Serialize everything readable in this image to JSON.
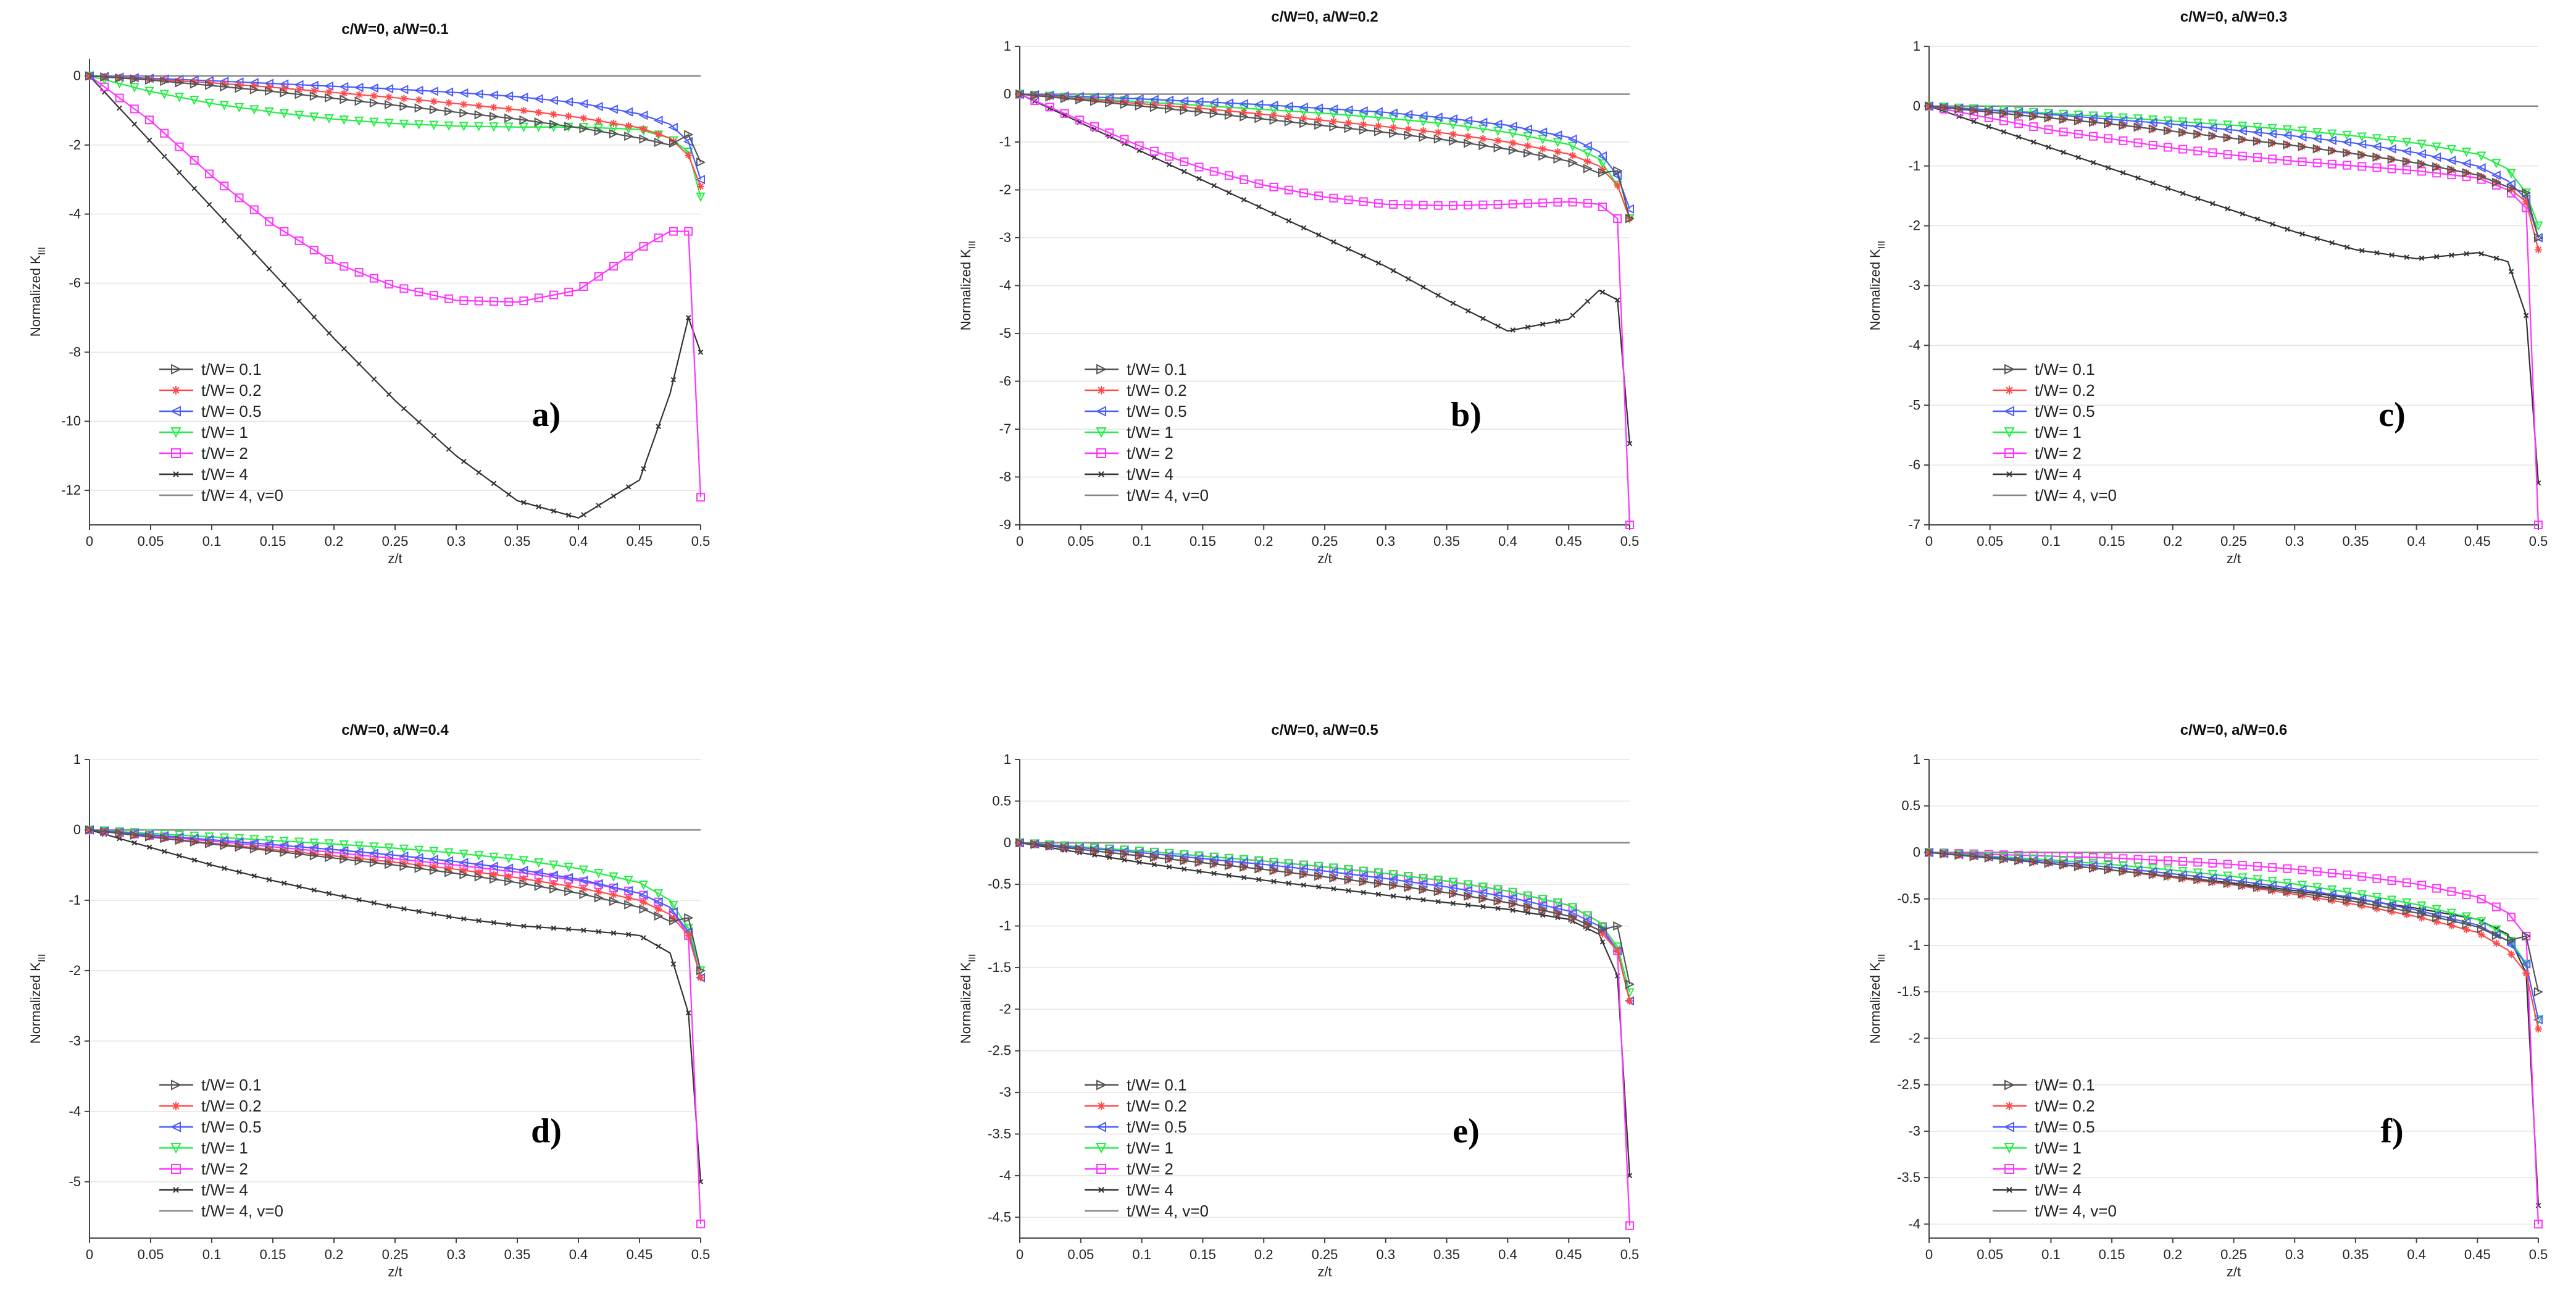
{
  "figure": {
    "xlabel": "z/t",
    "ylabel_prefix": "Normalized K",
    "ylabel_sub": "III",
    "legend": [
      {
        "label": "t/W= 0.1",
        "color": "#555555",
        "marker": "tri-right"
      },
      {
        "label": "t/W= 0.2",
        "color": "#ff4a4a",
        "marker": "star"
      },
      {
        "label": "t/W= 0.5",
        "color": "#4a5cff",
        "marker": "tri-left"
      },
      {
        "label": "t/W= 1",
        "color": "#22ee44",
        "marker": "tri-down"
      },
      {
        "label": "t/W= 2",
        "color": "#ff33ff",
        "marker": "square"
      },
      {
        "label": "t/W= 4",
        "color": "#333333",
        "marker": "x"
      },
      {
        "label": "t/W= 4, v=0",
        "color": "#888888",
        "marker": "none"
      }
    ]
  },
  "chart_data": [
    {
      "type": "line",
      "panel_label": "a)",
      "title": "c/W=0, a/W=0.1",
      "xlabel": "z/t",
      "ylabel": "Normalized K_III",
      "xlim": [
        0,
        0.5
      ],
      "ylim": [
        -13,
        0.5
      ],
      "xticks": [
        0,
        0.05,
        0.1,
        0.15,
        0.2,
        0.25,
        0.3,
        0.35,
        0.4,
        0.45,
        0.5
      ],
      "yticks": [
        0,
        -2,
        -4,
        -6,
        -8,
        -10,
        -12
      ],
      "x": [
        0,
        0.05,
        0.1,
        0.15,
        0.2,
        0.25,
        0.3,
        0.35,
        0.4,
        0.45,
        0.475,
        0.49,
        0.5
      ],
      "series": [
        {
          "name": "t/W= 0.1",
          "values": [
            0,
            -0.12,
            -0.28,
            -0.45,
            -0.65,
            -0.85,
            -1.05,
            -1.25,
            -1.5,
            -1.8,
            -2.0,
            -1.7,
            -2.5
          ]
        },
        {
          "name": "t/W= 0.2",
          "values": [
            0,
            -0.1,
            -0.2,
            -0.33,
            -0.48,
            -0.63,
            -0.8,
            -0.98,
            -1.2,
            -1.5,
            -1.8,
            -2.3,
            -3.2
          ]
        },
        {
          "name": "t/W= 0.5",
          "values": [
            0,
            -0.07,
            -0.14,
            -0.22,
            -0.3,
            -0.38,
            -0.48,
            -0.6,
            -0.78,
            -1.1,
            -1.4,
            -1.9,
            -3.0
          ]
        },
        {
          "name": "t/W= 1",
          "values": [
            0,
            -0.45,
            -0.8,
            -1.05,
            -1.25,
            -1.38,
            -1.45,
            -1.48,
            -1.48,
            -1.55,
            -1.8,
            -2.2,
            -3.5
          ]
        },
        {
          "name": "t/W= 2",
          "values": [
            0,
            -1.3,
            -2.9,
            -4.3,
            -5.4,
            -6.1,
            -6.5,
            -6.55,
            -6.2,
            -5.0,
            -4.5,
            -4.5,
            -12.2
          ]
        },
        {
          "name": "t/W= 4",
          "values": [
            0,
            -1.9,
            -3.8,
            -5.7,
            -7.6,
            -9.4,
            -11.0,
            -12.3,
            -12.8,
            -11.7,
            -9.2,
            -7.0,
            -8.0
          ]
        },
        {
          "name": "t/W= 4, v=0",
          "values": [
            0,
            0,
            0,
            0,
            0,
            0,
            0,
            0,
            0,
            0,
            0,
            0,
            0
          ]
        }
      ]
    },
    {
      "type": "line",
      "panel_label": "b)",
      "title": "c/W=0, a/W=0.2",
      "xlabel": "z/t",
      "ylabel": "Normalized K_III",
      "xlim": [
        0,
        0.5
      ],
      "ylim": [
        -9,
        1
      ],
      "xticks": [
        0,
        0.05,
        0.1,
        0.15,
        0.2,
        0.25,
        0.3,
        0.35,
        0.4,
        0.45,
        0.5
      ],
      "yticks": [
        1,
        0,
        -1,
        -2,
        -3,
        -4,
        -5,
        -6,
        -7,
        -8,
        -9
      ],
      "x": [
        0,
        0.05,
        0.1,
        0.15,
        0.2,
        0.25,
        0.3,
        0.35,
        0.4,
        0.45,
        0.475,
        0.49,
        0.5
      ],
      "series": [
        {
          "name": "t/W= 0.1",
          "values": [
            0,
            -0.12,
            -0.25,
            -0.38,
            -0.52,
            -0.66,
            -0.8,
            -0.96,
            -1.15,
            -1.4,
            -1.65,
            -1.6,
            -2.6
          ]
        },
        {
          "name": "t/W= 0.2",
          "values": [
            0,
            -0.1,
            -0.2,
            -0.3,
            -0.42,
            -0.55,
            -0.68,
            -0.82,
            -1.0,
            -1.25,
            -1.5,
            -1.9,
            -2.6
          ]
        },
        {
          "name": "t/W= 0.5",
          "values": [
            0,
            -0.05,
            -0.1,
            -0.16,
            -0.22,
            -0.3,
            -0.38,
            -0.5,
            -0.65,
            -0.9,
            -1.2,
            -1.7,
            -2.4
          ]
        },
        {
          "name": "t/W= 1",
          "values": [
            0,
            -0.08,
            -0.16,
            -0.24,
            -0.32,
            -0.4,
            -0.5,
            -0.62,
            -0.8,
            -1.05,
            -1.35,
            -1.9,
            -2.6
          ]
        },
        {
          "name": "t/W= 2",
          "values": [
            0,
            -0.55,
            -1.1,
            -1.55,
            -1.9,
            -2.15,
            -2.3,
            -2.33,
            -2.3,
            -2.25,
            -2.3,
            -2.6,
            -9.0
          ]
        },
        {
          "name": "t/W= 4",
          "values": [
            0,
            -0.6,
            -1.2,
            -1.8,
            -2.4,
            -3.0,
            -3.6,
            -4.3,
            -4.95,
            -4.7,
            -4.1,
            -4.3,
            -7.3
          ]
        },
        {
          "name": "t/W= 4, v=0",
          "values": [
            0,
            0,
            0,
            0,
            0,
            0,
            0,
            0,
            0,
            0,
            0,
            0,
            0
          ]
        }
      ]
    },
    {
      "type": "line",
      "panel_label": "c)",
      "title": "c/W=0, a/W=0.3",
      "xlabel": "z/t",
      "ylabel": "Normalized K_III",
      "xlim": [
        0,
        0.5
      ],
      "ylim": [
        -7,
        1
      ],
      "xticks": [
        0,
        0.05,
        0.1,
        0.15,
        0.2,
        0.25,
        0.3,
        0.35,
        0.4,
        0.45,
        0.5
      ],
      "yticks": [
        1,
        0,
        -1,
        -2,
        -3,
        -4,
        -5,
        -6,
        -7
      ],
      "x": [
        0,
        0.05,
        0.1,
        0.15,
        0.2,
        0.25,
        0.3,
        0.35,
        0.4,
        0.45,
        0.475,
        0.49,
        0.5
      ],
      "series": [
        {
          "name": "t/W= 0.1",
          "values": [
            0,
            -0.1,
            -0.2,
            -0.3,
            -0.42,
            -0.54,
            -0.66,
            -0.8,
            -0.95,
            -1.15,
            -1.35,
            -1.45,
            -2.2
          ]
        },
        {
          "name": "t/W= 0.2",
          "values": [
            0,
            -0.1,
            -0.2,
            -0.3,
            -0.42,
            -0.54,
            -0.66,
            -0.8,
            -0.95,
            -1.15,
            -1.35,
            -1.6,
            -2.4
          ]
        },
        {
          "name": "t/W= 0.5",
          "values": [
            0,
            -0.07,
            -0.14,
            -0.22,
            -0.3,
            -0.4,
            -0.5,
            -0.62,
            -0.78,
            -1.0,
            -1.25,
            -1.55,
            -2.2
          ]
        },
        {
          "name": "t/W= 1",
          "values": [
            0,
            -0.06,
            -0.12,
            -0.18,
            -0.25,
            -0.32,
            -0.4,
            -0.5,
            -0.62,
            -0.8,
            -1.05,
            -1.45,
            -2.0
          ]
        },
        {
          "name": "t/W= 2",
          "values": [
            0,
            -0.2,
            -0.4,
            -0.55,
            -0.7,
            -0.82,
            -0.92,
            -1.0,
            -1.08,
            -1.2,
            -1.4,
            -1.7,
            -7.0
          ]
        },
        {
          "name": "t/W= 4",
          "values": [
            0,
            -0.35,
            -0.7,
            -1.05,
            -1.4,
            -1.75,
            -2.1,
            -2.4,
            -2.55,
            -2.45,
            -2.6,
            -3.5,
            -6.3
          ]
        },
        {
          "name": "t/W= 4, v=0",
          "values": [
            0,
            0,
            0,
            0,
            0,
            0,
            0,
            0,
            0,
            0,
            0,
            0,
            0
          ]
        }
      ]
    },
    {
      "type": "line",
      "panel_label": "d)",
      "title": "c/W=0, a/W=0.4",
      "xlabel": "z/t",
      "ylabel": "Normalized K_III",
      "xlim": [
        0,
        0.5
      ],
      "ylim": [
        -5.8,
        1
      ],
      "xticks": [
        0,
        0.05,
        0.1,
        0.15,
        0.2,
        0.25,
        0.3,
        0.35,
        0.4,
        0.45,
        0.5
      ],
      "yticks": [
        1,
        0,
        -1,
        -2,
        -3,
        -4,
        -5
      ],
      "x": [
        0,
        0.05,
        0.1,
        0.15,
        0.2,
        0.25,
        0.3,
        0.35,
        0.4,
        0.45,
        0.475,
        0.49,
        0.5
      ],
      "series": [
        {
          "name": "t/W= 0.1",
          "values": [
            0,
            -0.1,
            -0.2,
            -0.3,
            -0.4,
            -0.5,
            -0.62,
            -0.75,
            -0.9,
            -1.1,
            -1.3,
            -1.25,
            -2.0
          ]
        },
        {
          "name": "t/W= 0.2",
          "values": [
            0,
            -0.1,
            -0.19,
            -0.28,
            -0.37,
            -0.46,
            -0.56,
            -0.68,
            -0.82,
            -1.0,
            -1.2,
            -1.5,
            -2.1
          ]
        },
        {
          "name": "t/W= 0.5",
          "values": [
            0,
            -0.07,
            -0.14,
            -0.21,
            -0.28,
            -0.36,
            -0.45,
            -0.56,
            -0.7,
            -0.9,
            -1.1,
            -1.45,
            -2.1
          ]
        },
        {
          "name": "t/W= 1",
          "values": [
            0,
            -0.05,
            -0.1,
            -0.15,
            -0.2,
            -0.26,
            -0.33,
            -0.42,
            -0.55,
            -0.75,
            -1.0,
            -1.4,
            -2.0
          ]
        },
        {
          "name": "t/W= 2",
          "values": [
            0,
            -0.08,
            -0.16,
            -0.24,
            -0.32,
            -0.41,
            -0.5,
            -0.6,
            -0.72,
            -0.9,
            -1.1,
            -1.5,
            -5.6
          ]
        },
        {
          "name": "t/W= 4",
          "values": [
            0,
            -0.25,
            -0.5,
            -0.72,
            -0.92,
            -1.1,
            -1.25,
            -1.36,
            -1.42,
            -1.5,
            -1.75,
            -2.6,
            -5.0
          ]
        },
        {
          "name": "t/W= 4, v=0",
          "values": [
            0,
            0,
            0,
            0,
            0,
            0,
            0,
            0,
            0,
            0,
            0,
            0,
            0
          ]
        }
      ]
    },
    {
      "type": "line",
      "panel_label": "e)",
      "title": "c/W=0, a/W=0.5",
      "xlabel": "z/t",
      "ylabel": "Normalized K_III",
      "xlim": [
        0,
        0.5
      ],
      "ylim": [
        -4.75,
        1
      ],
      "xticks": [
        0,
        0.05,
        0.1,
        0.15,
        0.2,
        0.25,
        0.3,
        0.35,
        0.4,
        0.45,
        0.5
      ],
      "yticks": [
        1,
        0.5,
        0,
        -0.5,
        -1,
        -1.5,
        -2,
        -2.5,
        -3,
        -3.5,
        -4,
        -4.5
      ],
      "x": [
        0,
        0.05,
        0.1,
        0.15,
        0.2,
        0.25,
        0.3,
        0.35,
        0.4,
        0.45,
        0.475,
        0.49,
        0.5
      ],
      "series": [
        {
          "name": "t/W= 0.1",
          "values": [
            0,
            -0.08,
            -0.16,
            -0.24,
            -0.32,
            -0.41,
            -0.5,
            -0.6,
            -0.72,
            -0.88,
            -1.05,
            -1.0,
            -1.7
          ]
        },
        {
          "name": "t/W= 0.2",
          "values": [
            0,
            -0.08,
            -0.16,
            -0.24,
            -0.32,
            -0.41,
            -0.5,
            -0.6,
            -0.72,
            -0.88,
            -1.05,
            -1.3,
            -1.9
          ]
        },
        {
          "name": "t/W= 0.5",
          "values": [
            0,
            -0.06,
            -0.12,
            -0.19,
            -0.26,
            -0.34,
            -0.43,
            -0.53,
            -0.65,
            -0.82,
            -1.0,
            -1.3,
            -1.9
          ]
        },
        {
          "name": "t/W= 1",
          "values": [
            0,
            -0.05,
            -0.1,
            -0.16,
            -0.22,
            -0.29,
            -0.37,
            -0.46,
            -0.58,
            -0.75,
            -0.95,
            -1.25,
            -1.8
          ]
        },
        {
          "name": "t/W= 2",
          "values": [
            0,
            -0.05,
            -0.1,
            -0.16,
            -0.22,
            -0.29,
            -0.37,
            -0.46,
            -0.58,
            -0.75,
            -0.95,
            -1.3,
            -4.6
          ]
        },
        {
          "name": "t/W= 4",
          "values": [
            0,
            -0.12,
            -0.24,
            -0.35,
            -0.45,
            -0.54,
            -0.63,
            -0.72,
            -0.8,
            -0.92,
            -1.1,
            -1.6,
            -4.0
          ]
        },
        {
          "name": "t/W= 4, v=0",
          "values": [
            0,
            0,
            0,
            0,
            0,
            0,
            0,
            0,
            0,
            0,
            0,
            0,
            0
          ]
        }
      ]
    },
    {
      "type": "line",
      "panel_label": "f)",
      "title": "c/W=0, a/W=0.6",
      "xlabel": "z/t",
      "ylabel": "Normalized K_III",
      "xlim": [
        0,
        0.5
      ],
      "ylim": [
        -4.15,
        1
      ],
      "xticks": [
        0,
        0.05,
        0.1,
        0.15,
        0.2,
        0.25,
        0.3,
        0.35,
        0.4,
        0.45,
        0.5
      ],
      "yticks": [
        1,
        0.5,
        0,
        -0.5,
        -1,
        -1.5,
        -2,
        -2.5,
        -3,
        -3.5,
        -4
      ],
      "x": [
        0,
        0.05,
        0.1,
        0.15,
        0.2,
        0.25,
        0.3,
        0.35,
        0.4,
        0.45,
        0.475,
        0.49,
        0.5
      ],
      "series": [
        {
          "name": "t/W= 0.1",
          "values": [
            0,
            -0.06,
            -0.12,
            -0.19,
            -0.26,
            -0.34,
            -0.43,
            -0.53,
            -0.65,
            -0.8,
            -0.95,
            -0.9,
            -1.5
          ]
        },
        {
          "name": "t/W= 0.2",
          "values": [
            0,
            -0.06,
            -0.12,
            -0.19,
            -0.27,
            -0.35,
            -0.45,
            -0.56,
            -0.69,
            -0.86,
            -1.05,
            -1.3,
            -1.9
          ]
        },
        {
          "name": "t/W= 0.5",
          "values": [
            0,
            -0.05,
            -0.1,
            -0.16,
            -0.23,
            -0.3,
            -0.39,
            -0.49,
            -0.62,
            -0.78,
            -0.95,
            -1.2,
            -1.8
          ]
        },
        {
          "name": "t/W= 1",
          "values": [
            0,
            -0.04,
            -0.08,
            -0.13,
            -0.19,
            -0.26,
            -0.34,
            -0.44,
            -0.56,
            -0.72,
            -0.9,
            -1.2,
            -1.8
          ]
        },
        {
          "name": "t/W= 2",
          "values": [
            0,
            -0.02,
            -0.04,
            -0.06,
            -0.09,
            -0.13,
            -0.18,
            -0.25,
            -0.34,
            -0.48,
            -0.65,
            -0.9,
            -4.0
          ]
        },
        {
          "name": "t/W= 4",
          "values": [
            0,
            -0.06,
            -0.12,
            -0.19,
            -0.26,
            -0.33,
            -0.41,
            -0.5,
            -0.6,
            -0.72,
            -0.88,
            -1.3,
            -3.8
          ]
        },
        {
          "name": "t/W= 4, v=0",
          "values": [
            0,
            0,
            0,
            0,
            0,
            0,
            0,
            0,
            0,
            0,
            0,
            0,
            0
          ]
        }
      ]
    }
  ]
}
